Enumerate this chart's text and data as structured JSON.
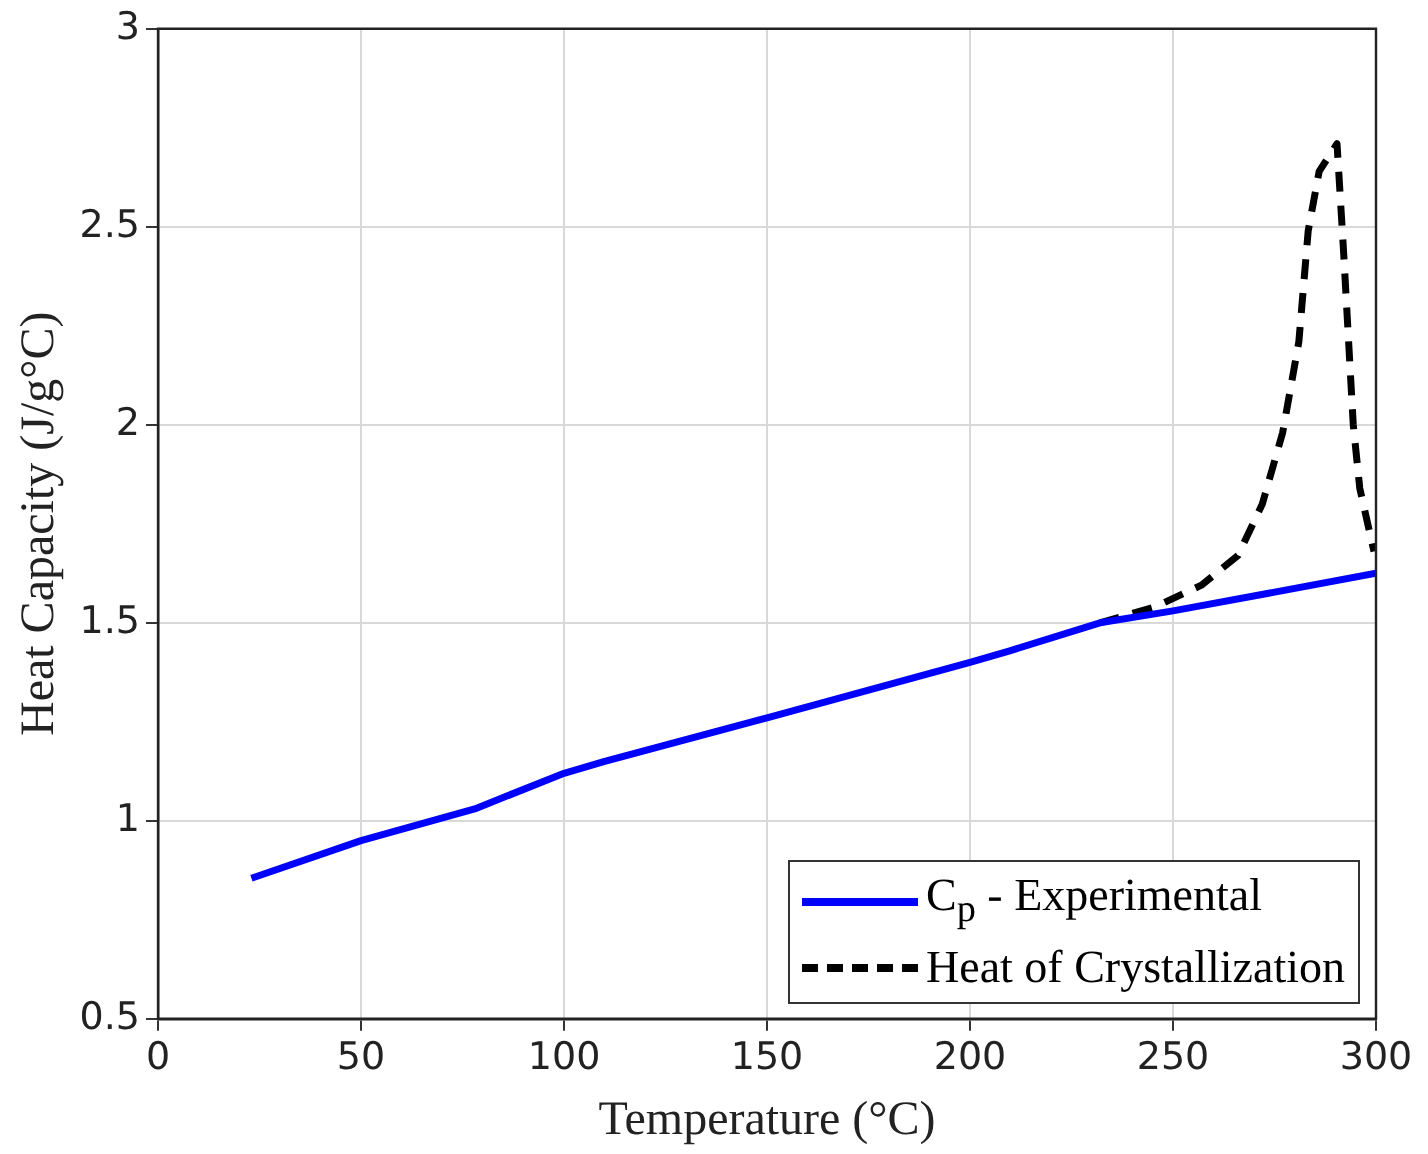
{
  "chart_data": {
    "type": "line",
    "xlabel": "Temperature (°C)",
    "ylabel": "Heat Capacity (J/g°C)",
    "xlim": [
      0,
      300
    ],
    "xticks": [
      0,
      50,
      100,
      150,
      200,
      250,
      300
    ],
    "ylim": [
      0.5,
      3
    ],
    "yticks": [
      0.5,
      1,
      1.5,
      2,
      2.5,
      3
    ],
    "grid": true,
    "legend": "bottom right",
    "marker": "none",
    "series": [
      {
        "name": "C$_{p}$ - Experimental",
        "color": "#0000ff",
        "line_style": "solid",
        "x": [
          23,
          50,
          78,
          100,
          110,
          150,
          200,
          210,
          232,
          250,
          300
        ],
        "values": [
          0.855,
          0.95,
          1.03,
          1.12,
          1.15,
          1.26,
          1.4,
          1.43,
          1.5,
          1.53,
          1.625
        ]
      },
      {
        "name": "Heat of Crystallization",
        "color": "#000000",
        "line_style": "dashed",
        "x": [
          232,
          245.5,
          257,
          266,
          272,
          277,
          281,
          283.3,
          286,
          290.4,
          292,
          294.4,
          296,
          299.5
        ],
        "values": [
          1.5,
          1.54,
          1.595,
          1.67,
          1.8,
          1.98,
          2.21,
          2.49,
          2.64,
          2.71,
          2.44,
          2.0,
          1.84,
          1.68
        ]
      }
    ]
  }
}
